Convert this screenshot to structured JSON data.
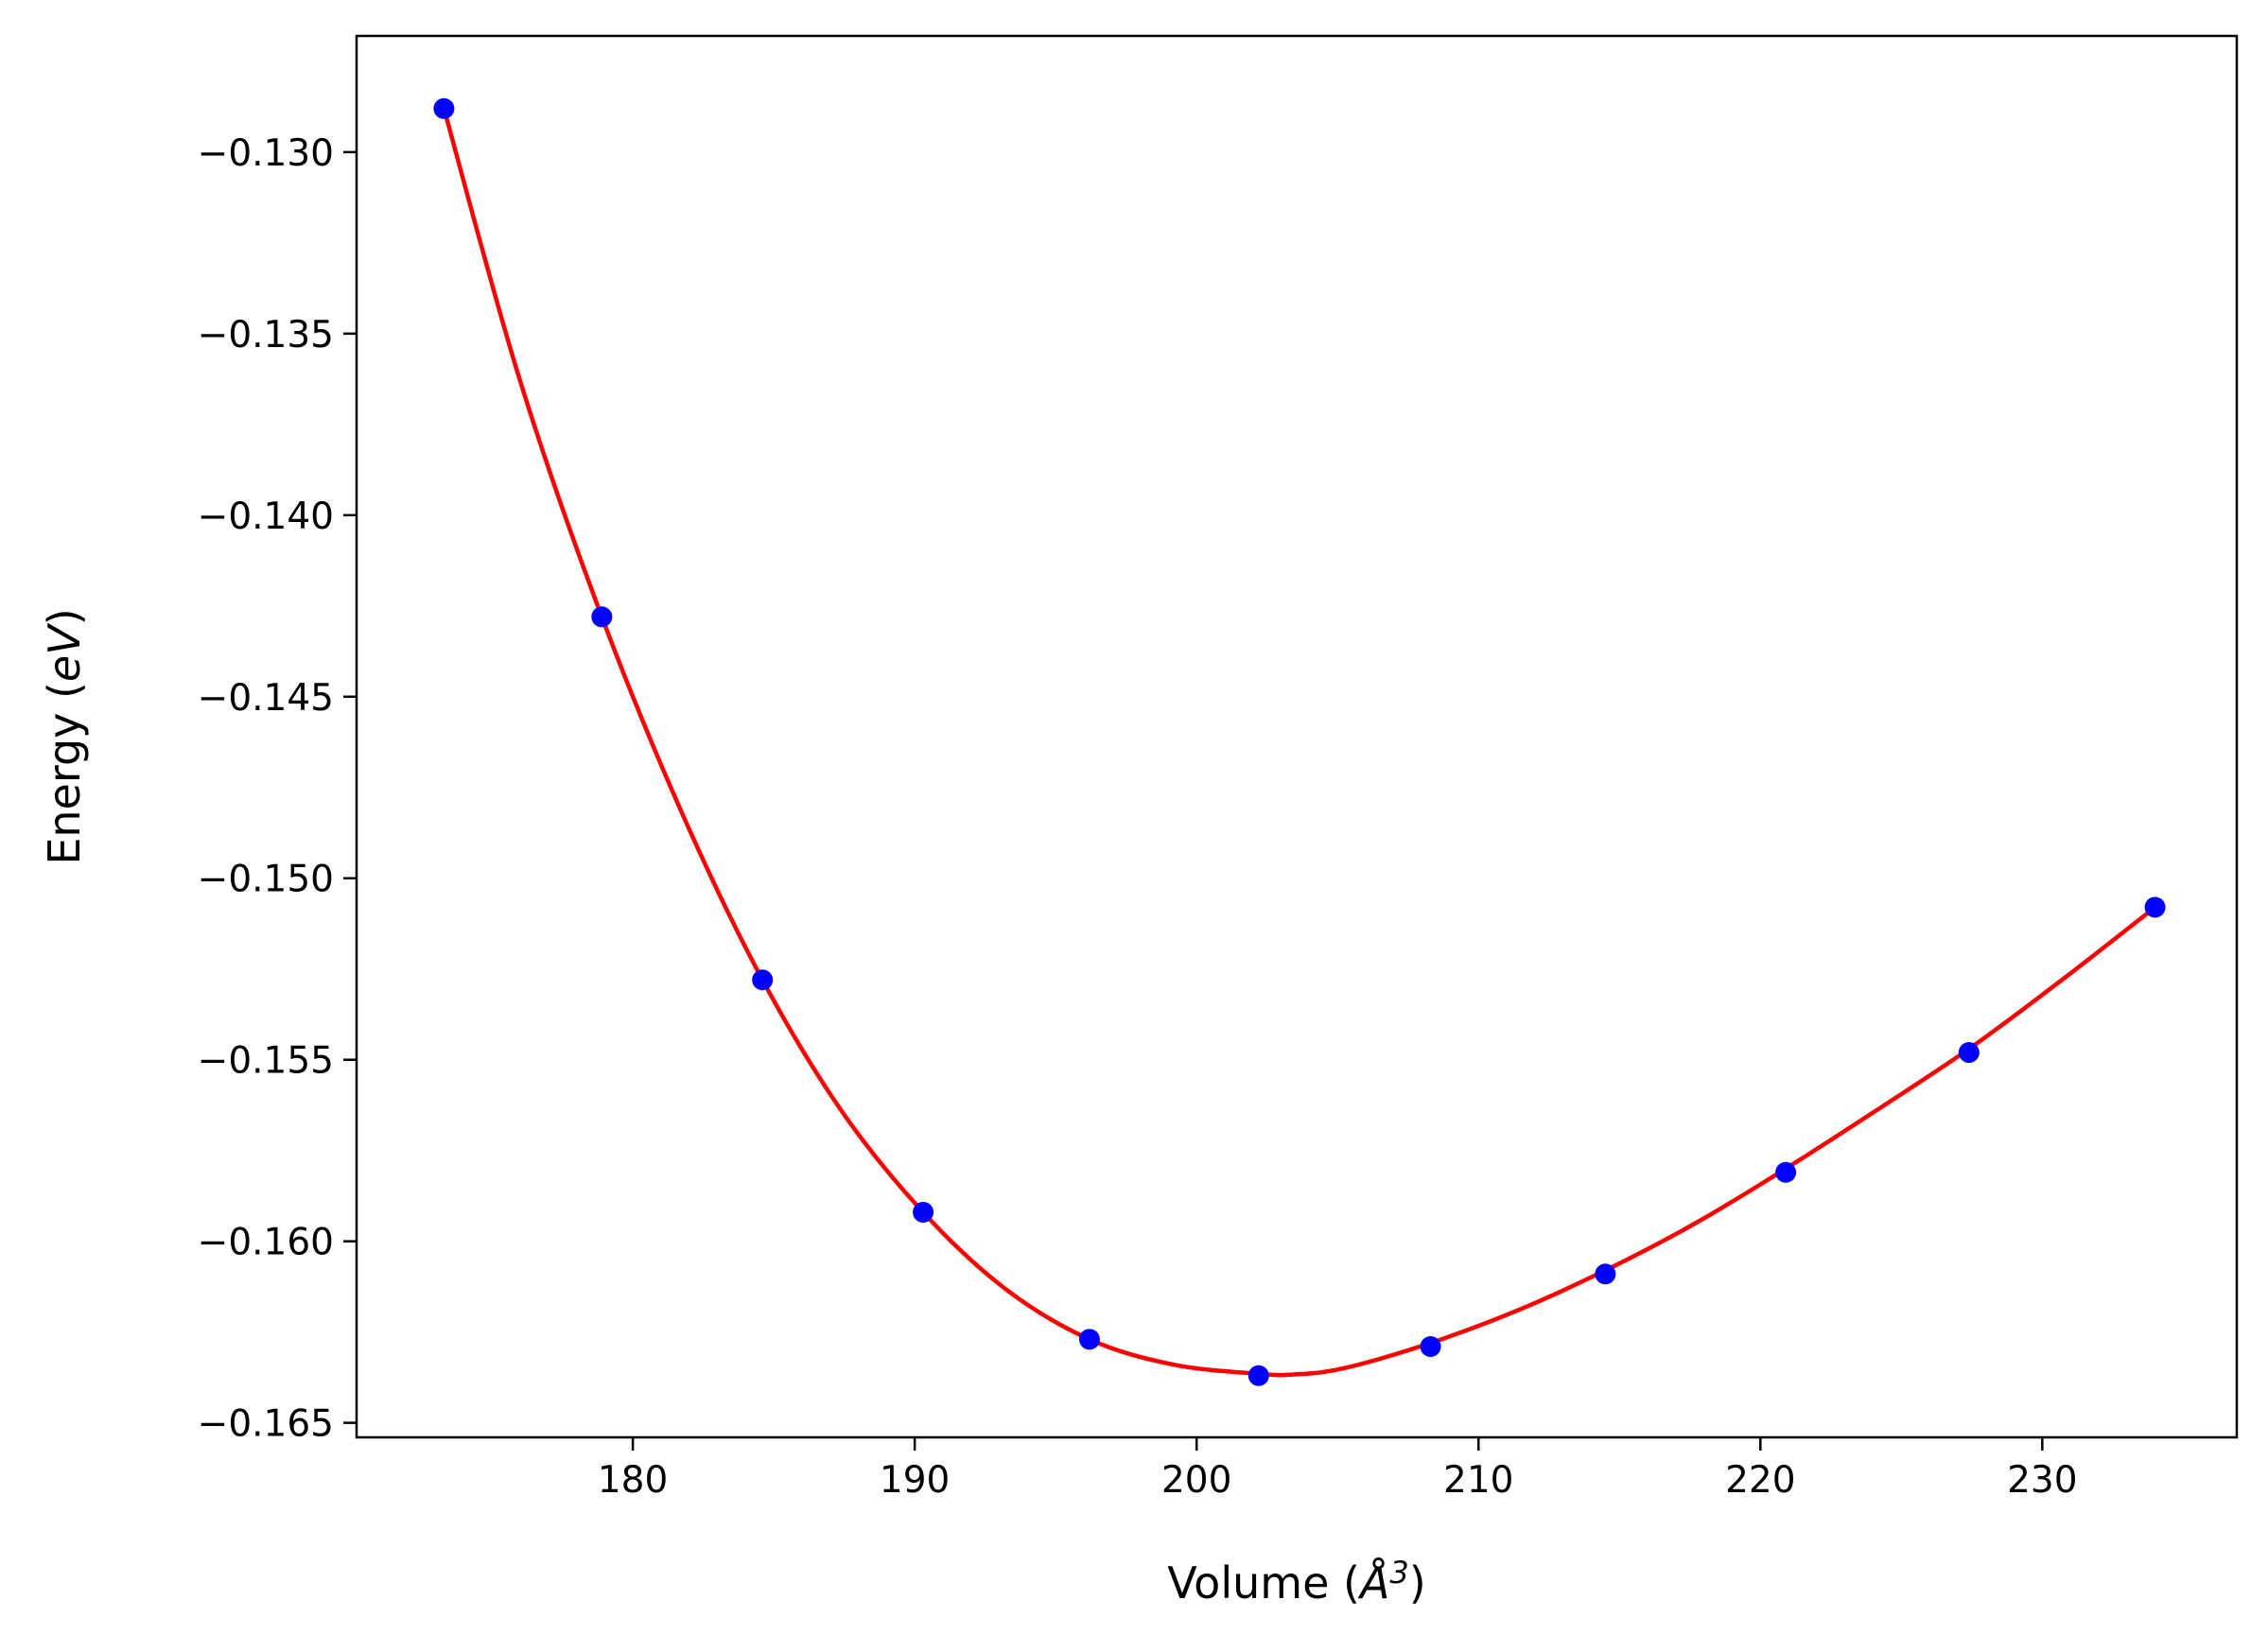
{
  "chart_data": {
    "type": "line",
    "xlabel": {
      "prefix": "Volume (",
      "symbol": "Å",
      "superscript": "3",
      "suffix": ")"
    },
    "ylabel": {
      "prefix": "Energy (",
      "unit": "eV",
      "suffix": ")"
    },
    "xlim": [
      170.2,
      236.9
    ],
    "ylim": [
      -0.1654,
      -0.1268
    ],
    "xticks": [
      180,
      190,
      200,
      210,
      220,
      230
    ],
    "xtick_labels": [
      "180",
      "190",
      "200",
      "210",
      "220",
      "230"
    ],
    "yticks": [
      -0.13,
      -0.135,
      -0.14,
      -0.145,
      -0.15,
      -0.155,
      -0.16,
      -0.165
    ],
    "ytick_labels": [
      "−0.130",
      "−0.135",
      "−0.140",
      "−0.145",
      "−0.150",
      "−0.155",
      "−0.160",
      "−0.165"
    ],
    "grid": false,
    "series": [
      {
        "kind": "scatter",
        "color": "#0000ff",
        "points": [
          {
            "x": 173.3,
            "y": -0.1288
          },
          {
            "x": 178.9,
            "y": -0.1428
          },
          {
            "x": 184.6,
            "y": -0.1528
          },
          {
            "x": 190.3,
            "y": -0.1592
          },
          {
            "x": 196.2,
            "y": -0.1627
          },
          {
            "x": 202.2,
            "y": -0.1637
          },
          {
            "x": 208.3,
            "y": -0.1629
          },
          {
            "x": 214.5,
            "y": -0.1609
          },
          {
            "x": 220.9,
            "y": -0.1581
          },
          {
            "x": 227.4,
            "y": -0.1548
          },
          {
            "x": 234.0,
            "y": -0.1508
          }
        ]
      },
      {
        "kind": "line",
        "color": "#ff0000",
        "points": [
          {
            "x": 173.3,
            "y": -0.1288
          },
          {
            "x": 176.0,
            "y": -0.1363
          },
          {
            "x": 178.9,
            "y": -0.1428
          },
          {
            "x": 181.8,
            "y": -0.1483
          },
          {
            "x": 184.6,
            "y": -0.1528
          },
          {
            "x": 187.4,
            "y": -0.1564
          },
          {
            "x": 190.3,
            "y": -0.1592
          },
          {
            "x": 193.2,
            "y": -0.1613
          },
          {
            "x": 196.2,
            "y": -0.1627
          },
          {
            "x": 199.2,
            "y": -0.1634
          },
          {
            "x": 202.2,
            "y": -0.16365
          },
          {
            "x": 203.4,
            "y": -0.16367
          },
          {
            "x": 205.2,
            "y": -0.1635
          },
          {
            "x": 208.3,
            "y": -0.1628
          },
          {
            "x": 211.4,
            "y": -0.1619
          },
          {
            "x": 214.5,
            "y": -0.1608
          },
          {
            "x": 217.7,
            "y": -0.1595
          },
          {
            "x": 220.9,
            "y": -0.158
          },
          {
            "x": 224.1,
            "y": -0.1564
          },
          {
            "x": 227.4,
            "y": -0.1547
          },
          {
            "x": 230.7,
            "y": -0.1528
          },
          {
            "x": 234.0,
            "y": -0.1508
          }
        ]
      }
    ]
  }
}
